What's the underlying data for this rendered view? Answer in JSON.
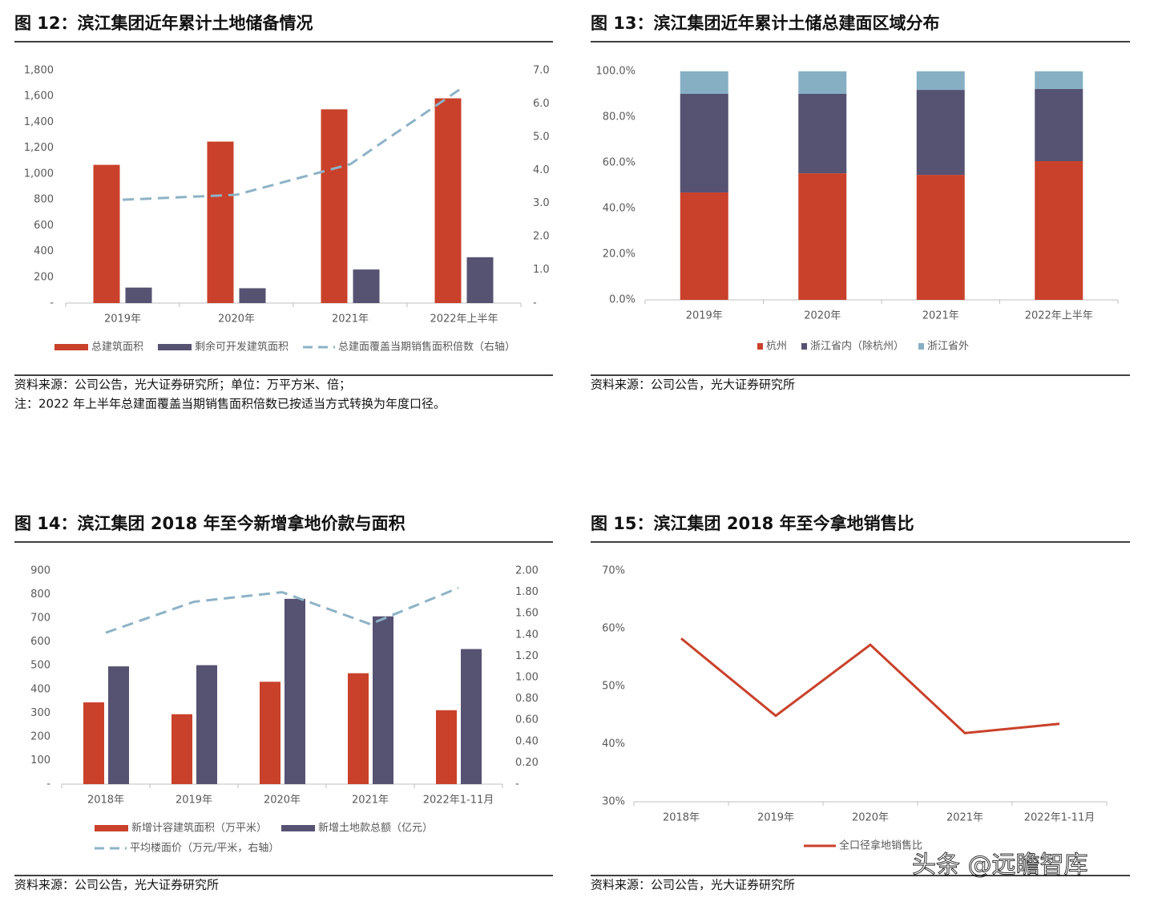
{
  "chart_data": [
    {
      "type": "bar",
      "title": "图 12：滨江集团近年累计土地储备情况",
      "source": "资料来源：公司公告，光大证券研究所；单位：万平方米、倍；",
      "note": "注：2022 年上半年总建面覆盖当期销售面积倍数已按适当方式转换为年度口径。",
      "categories": [
        "2019年",
        "2020年",
        "2021年",
        "2022年上半年"
      ],
      "series": [
        {
          "name": "总建筑面积",
          "color": "#c9412a",
          "values": [
            1070,
            1250,
            1500,
            1585
          ]
        },
        {
          "name": "剩余可开发建筑面积",
          "color": "#565272",
          "values": [
            120,
            115,
            260,
            355
          ]
        },
        {
          "name": "总建面覆盖当期销售面积倍数（右轴）",
          "color": "#8db3c7",
          "axis": "y2",
          "dash": true,
          "values": [
            3.11,
            3.26,
            4.18,
            6.52
          ]
        }
      ],
      "ylim": [
        0,
        1800
      ],
      "yticks": [
        {
          "value": 0,
          "label": "-"
        },
        200,
        400,
        600,
        800,
        {
          "value": 1000,
          "label": "1,000"
        },
        {
          "value": 1200,
          "label": "1,200"
        },
        {
          "value": 1400,
          "label": "1,400"
        },
        {
          "value": 1600,
          "label": "1,600"
        },
        {
          "value": 1800,
          "label": "1,800"
        }
      ],
      "y2lim": [
        0,
        7
      ],
      "y2ticks": [
        {
          "value": 0,
          "label": "-"
        },
        {
          "value": 1,
          "label": "1.0"
        },
        {
          "value": 2,
          "label": "2.0"
        },
        {
          "value": 3,
          "label": "3.0"
        },
        {
          "value": 4,
          "label": "4.0"
        },
        {
          "value": 5,
          "label": "5.0"
        },
        {
          "value": 6,
          "label": "6.0"
        },
        {
          "value": 7,
          "label": "7.0"
        }
      ]
    },
    {
      "type": "stacked_bar",
      "title": "图 13：滨江集团近年累计土储总建面区域分布",
      "source": "资料来源：公司公告，光大证券研究所",
      "categories": [
        "2019年",
        "2020年",
        "2021年",
        "2022年上半年"
      ],
      "series": [
        {
          "name": "杭州",
          "color": "#c9412a",
          "values": [
            47.0,
            55.4,
            54.7,
            60.7
          ]
        },
        {
          "name": "浙江省内（除杭州）",
          "color": "#565272",
          "values": [
            43.2,
            34.8,
            37.2,
            31.6
          ]
        },
        {
          "name": "浙江省外",
          "color": "#86afc4",
          "values": [
            9.8,
            9.8,
            8.1,
            7.7
          ]
        }
      ],
      "ylim": [
        0,
        100
      ],
      "yticks": [
        {
          "value": 0,
          "label": "0.0%"
        },
        {
          "value": 20,
          "label": "20.0%"
        },
        {
          "value": 40,
          "label": "40.0%"
        },
        {
          "value": 60,
          "label": "60.0%"
        },
        {
          "value": 80,
          "label": "80.0%"
        },
        {
          "value": 100,
          "label": "100.0%"
        }
      ]
    },
    {
      "type": "bar",
      "title": "图 14：滨江集团 2018 年至今新增拿地价款与面积",
      "source": "资料来源：公司公告，光大证券研究所",
      "categories": [
        "2018年",
        "2019年",
        "2020年",
        "2021年",
        "2022年1-11月"
      ],
      "series": [
        {
          "name": "新增计容建筑面积（万平米）",
          "color": "#c9412a",
          "values": [
            345,
            295,
            432,
            468,
            312
          ]
        },
        {
          "name": "新增土地款总额（亿元）",
          "color": "#565272",
          "values": [
            497,
            502,
            782,
            708,
            570
          ]
        },
        {
          "name": "平均楼面价（万元/平米，右轴）",
          "color": "#8db3c7",
          "axis": "y2",
          "dash": true,
          "values": [
            1.42,
            1.71,
            1.8,
            1.5,
            1.84
          ]
        }
      ],
      "ylim": [
        0,
        900
      ],
      "yticks": [
        {
          "value": 0,
          "label": "-"
        },
        100,
        200,
        300,
        400,
        500,
        600,
        700,
        800,
        900
      ],
      "y2lim": [
        0,
        2
      ],
      "y2ticks": [
        {
          "value": 0,
          "label": "-"
        },
        {
          "value": 0.2,
          "label": "0.20"
        },
        {
          "value": 0.4,
          "label": "0.40"
        },
        {
          "value": 0.6,
          "label": "0.60"
        },
        {
          "value": 0.8,
          "label": "0.80"
        },
        {
          "value": 1,
          "label": "1.00"
        },
        {
          "value": 1.2,
          "label": "1.20"
        },
        {
          "value": 1.4,
          "label": "1.40"
        },
        {
          "value": 1.6,
          "label": "1.60"
        },
        {
          "value": 1.8,
          "label": "1.80"
        },
        {
          "value": 2,
          "label": "2.00"
        }
      ]
    },
    {
      "type": "line",
      "title": "图 15：滨江集团 2018 年至今拿地销售比",
      "source": "资料来源：公司公告，光大证券研究所",
      "categories": [
        "2018年",
        "2019年",
        "2020年",
        "2021年",
        "2022年1-11月"
      ],
      "series": [
        {
          "name": "全口径拿地销售比",
          "color": "#c9412a",
          "values": [
            58.3,
            44.9,
            57.2,
            41.9,
            43.5
          ]
        }
      ],
      "ylim": [
        30,
        70
      ],
      "yticks": [
        {
          "value": 30,
          "label": "30%"
        },
        {
          "value": 40,
          "label": "40%"
        },
        {
          "value": 50,
          "label": "50%"
        },
        {
          "value": 60,
          "label": "60%"
        },
        {
          "value": 70,
          "label": "70%"
        }
      ]
    }
  ],
  "watermark": "头条 @远瞻智库"
}
